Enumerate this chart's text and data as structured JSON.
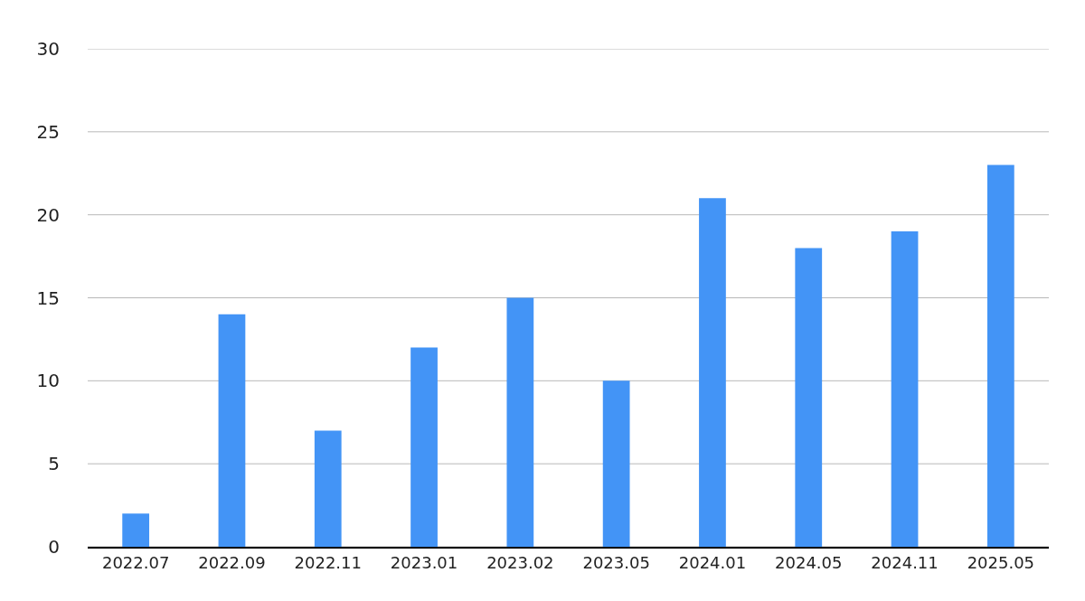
{
  "chart_data": {
    "type": "bar",
    "categories": [
      "2022.07",
      "2022.09",
      "2022.11",
      "2023.01",
      "2023.02",
      "2023.05",
      "2024.01",
      "2024.05",
      "2024.11",
      "2025.05"
    ],
    "values": [
      2,
      14,
      7,
      12,
      15,
      10,
      21,
      18,
      19,
      23
    ],
    "color": "#4394f6",
    "ylim": [
      0,
      30
    ],
    "yticks": [
      0,
      5,
      10,
      15,
      20,
      25,
      30
    ],
    "grid": "y"
  }
}
